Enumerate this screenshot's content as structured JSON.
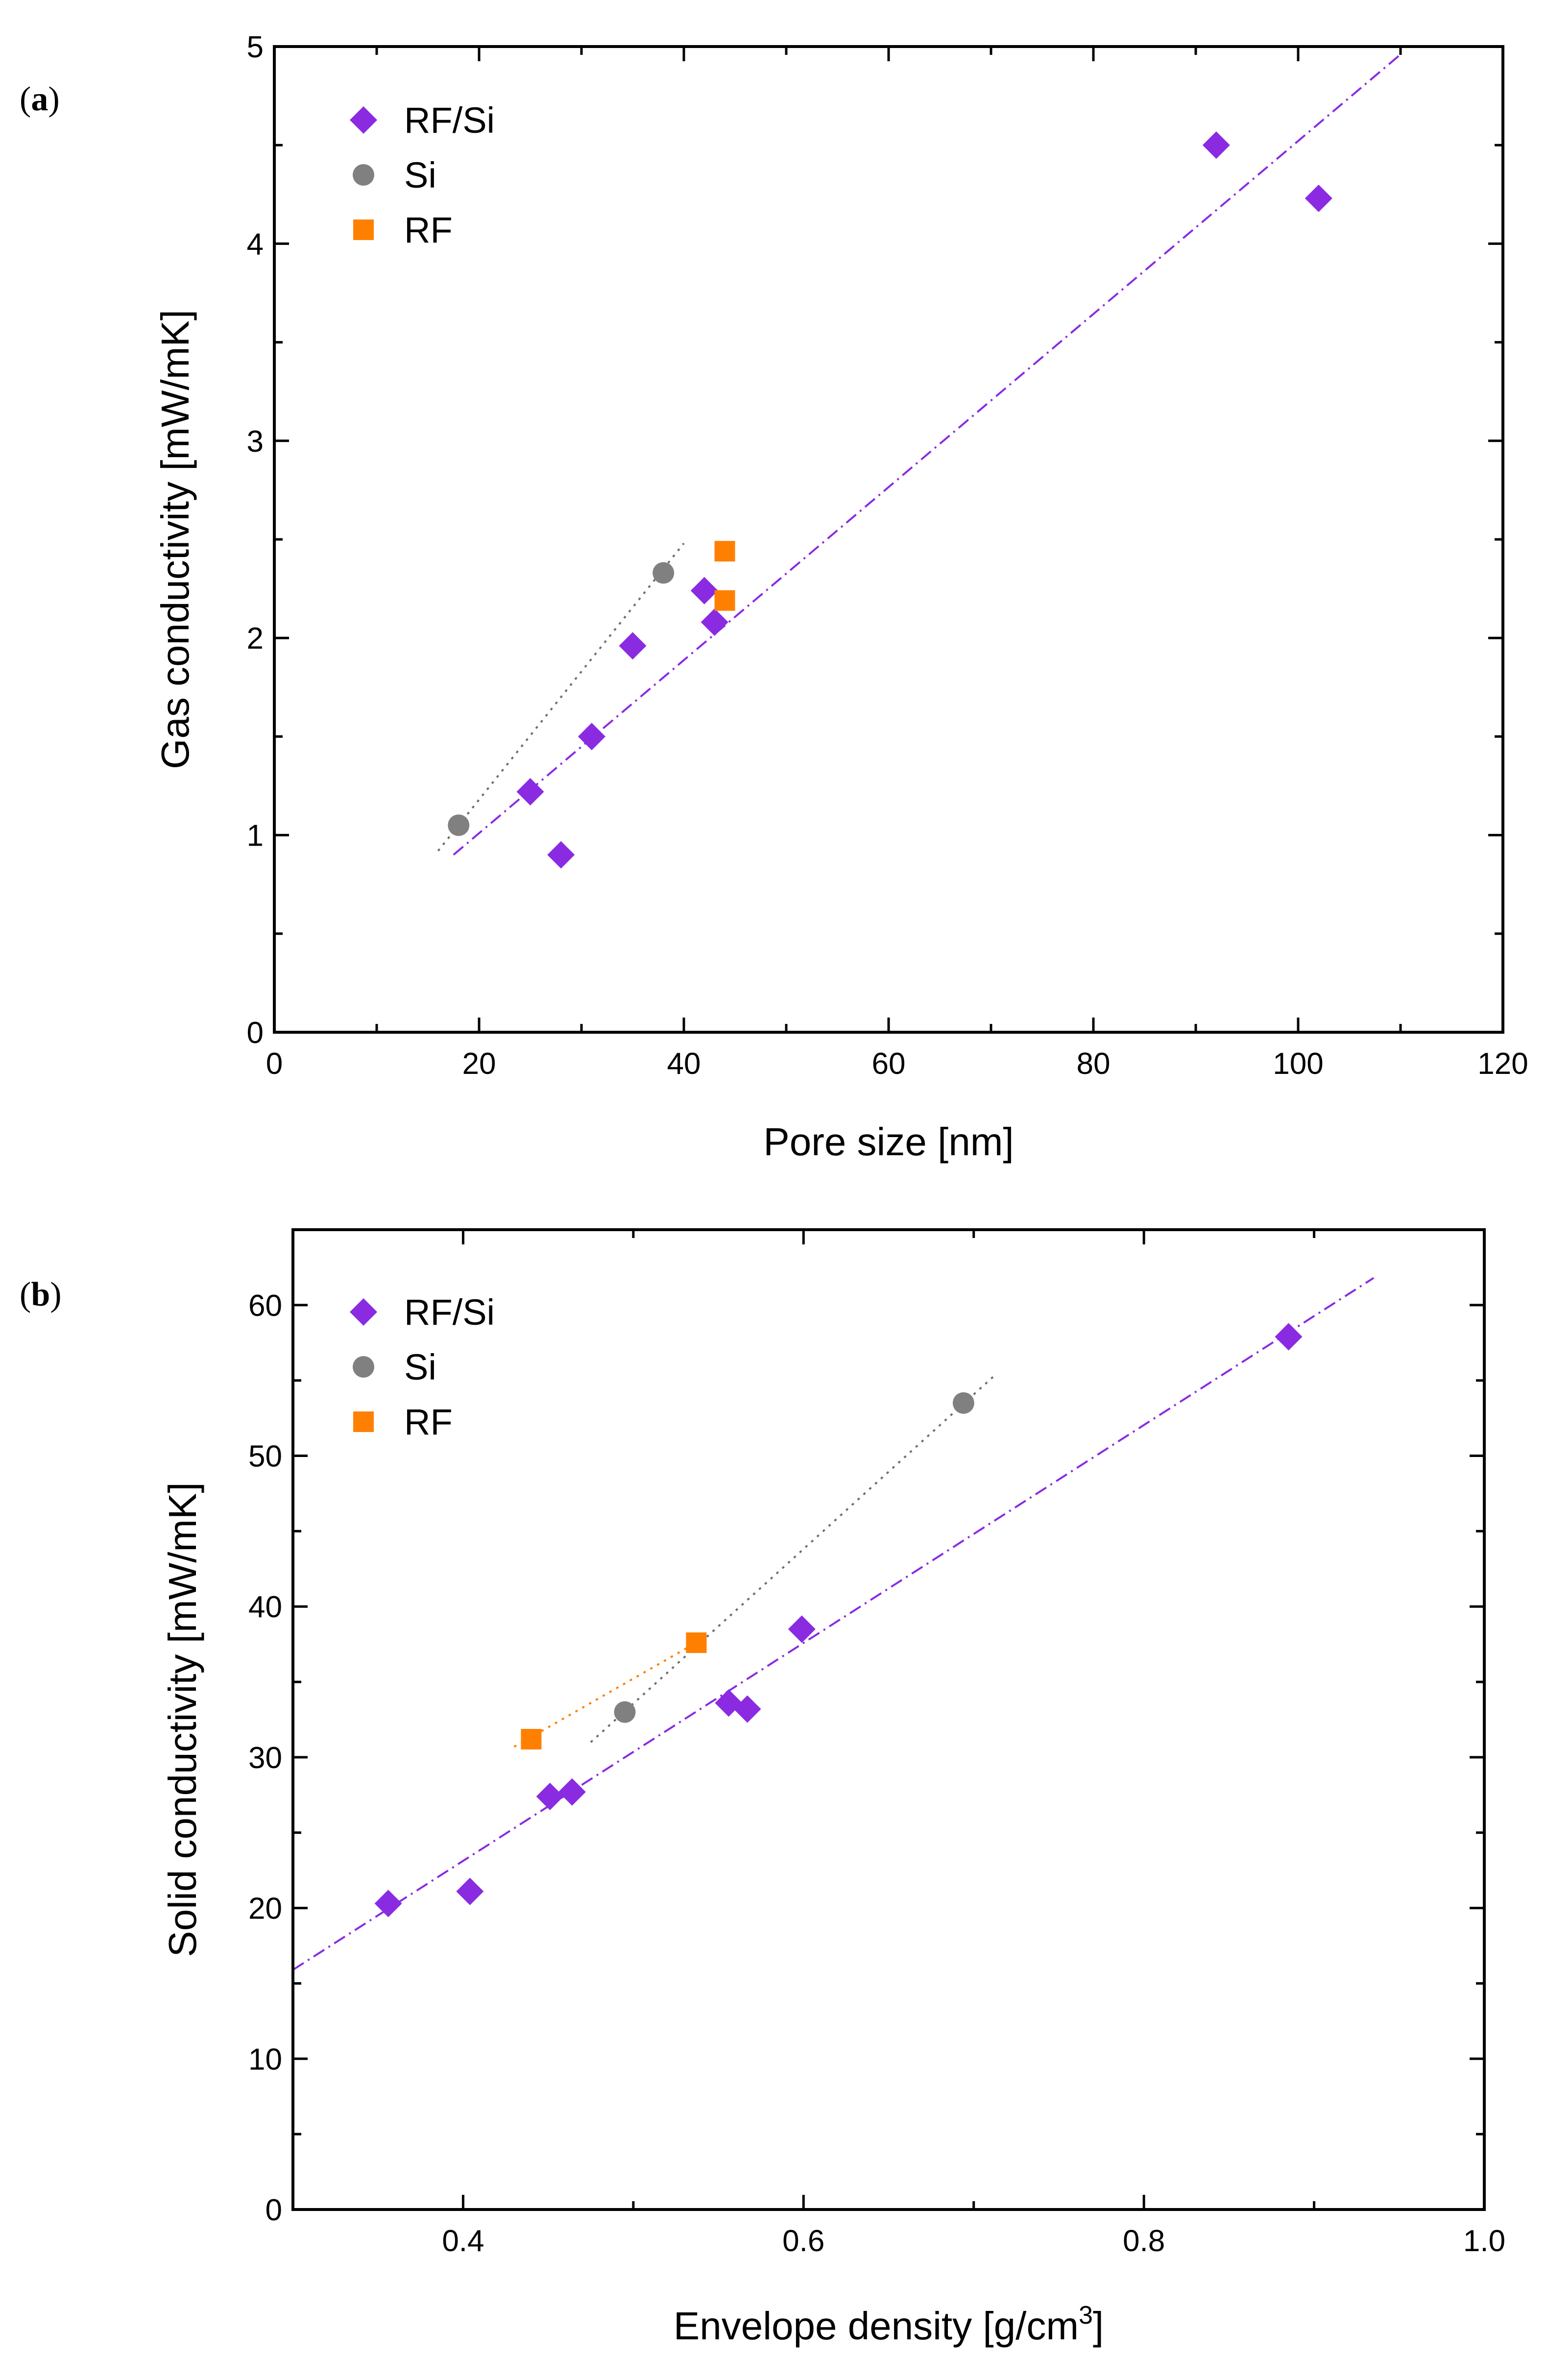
{
  "figure": {
    "panels": [
      "a",
      "b"
    ]
  },
  "colors": {
    "rfsi": "#8a2be2",
    "si": "#808080",
    "rf": "#ff8000",
    "fit_rfsi": "#8a2be2",
    "fit_si": "#6e6e6e",
    "fit_rf": "#ff8000"
  },
  "chart_data": [
    {
      "id": "a",
      "panel_label": "(a)",
      "panel_letter": "a",
      "type": "scatter",
      "xlabel": "Pore size [nm]",
      "ylabel": "Gas conductivity [mW/mK]",
      "xlim": [
        0,
        120
      ],
      "ylim": [
        0,
        5
      ],
      "xticks": [
        0,
        20,
        40,
        60,
        80,
        100,
        120
      ],
      "xtick_labels": [
        "0",
        "20",
        "40",
        "60",
        "80",
        "100",
        "120"
      ],
      "yticks": [
        0,
        1,
        2,
        3,
        4,
        5
      ],
      "ytick_labels": [
        "0",
        "1",
        "2",
        "3",
        "4",
        "5"
      ],
      "grid": false,
      "legend": "top-left",
      "series": [
        {
          "name": "RF/Si",
          "marker": "diamond",
          "color_key": "rfsi",
          "points": [
            [
              25,
              1.22
            ],
            [
              28,
              0.9
            ],
            [
              31,
              1.5
            ],
            [
              35,
              1.96
            ],
            [
              42,
              2.24
            ],
            [
              43,
              2.08
            ],
            [
              92,
              4.5
            ],
            [
              102,
              4.23
            ]
          ],
          "fit": {
            "style": "dashdot",
            "color_key": "fit_rfsi",
            "from": [
              17.5,
              0.9
            ],
            "to": [
              110,
              4.96
            ]
          }
        },
        {
          "name": "Si",
          "marker": "circle",
          "color_key": "si",
          "points": [
            [
              18,
              1.05
            ],
            [
              38,
              2.33
            ]
          ],
          "fit": {
            "style": "dotted",
            "color_key": "fit_si",
            "from": [
              16,
              0.92
            ],
            "to": [
              40,
              2.48
            ]
          }
        },
        {
          "name": "RF",
          "marker": "square",
          "color_key": "rf",
          "points": [
            [
              44,
              2.44
            ],
            [
              44,
              2.19
            ]
          ]
        }
      ]
    },
    {
      "id": "b",
      "panel_label": "(b)",
      "panel_letter": "b",
      "type": "scatter",
      "xlabel_main": "Envelope density [g/cm",
      "xlabel_sup": "3",
      "xlabel_end": "]",
      "ylabel": "Solid conductivity [mW/mK]",
      "xlim": [
        0.3,
        1.0
      ],
      "ylim": [
        0,
        65
      ],
      "xticks": [
        0.4,
        0.6,
        0.8,
        1.0
      ],
      "xtick_labels": [
        "0.4",
        "0.6",
        "0.8",
        "1.0"
      ],
      "yticks": [
        0,
        10,
        20,
        30,
        40,
        50,
        60
      ],
      "ytick_labels": [
        "0",
        "10",
        "20",
        "30",
        "40",
        "50",
        "60"
      ],
      "grid": false,
      "legend": "top-left",
      "series": [
        {
          "name": "RF/Si",
          "marker": "diamond",
          "color_key": "rfsi",
          "points": [
            [
              0.356,
              20.3
            ],
            [
              0.404,
              21.1
            ],
            [
              0.451,
              27.4
            ],
            [
              0.464,
              27.7
            ],
            [
              0.556,
              33.6
            ],
            [
              0.567,
              33.2
            ],
            [
              0.599,
              38.5
            ],
            [
              0.885,
              57.9
            ]
          ],
          "fit": {
            "style": "dashdot",
            "color_key": "fit_rfsi",
            "from": [
              0.3,
              15.9
            ],
            "to": [
              0.935,
              61.8
            ]
          }
        },
        {
          "name": "Si",
          "marker": "circle",
          "color_key": "si",
          "points": [
            [
              0.495,
              33.0
            ],
            [
              0.694,
              53.5
            ]
          ],
          "fit": {
            "style": "dotted",
            "color_key": "fit_si",
            "from": [
              0.475,
              31.0
            ],
            "to": [
              0.712,
              55.3
            ]
          }
        },
        {
          "name": "RF",
          "marker": "square",
          "color_key": "rf",
          "points": [
            [
              0.44,
              31.2
            ],
            [
              0.537,
              37.6
            ]
          ],
          "fit": {
            "style": "dotted",
            "color_key": "fit_rf",
            "from": [
              0.43,
              30.7
            ],
            "to": [
              0.54,
              37.8
            ]
          }
        }
      ]
    }
  ]
}
